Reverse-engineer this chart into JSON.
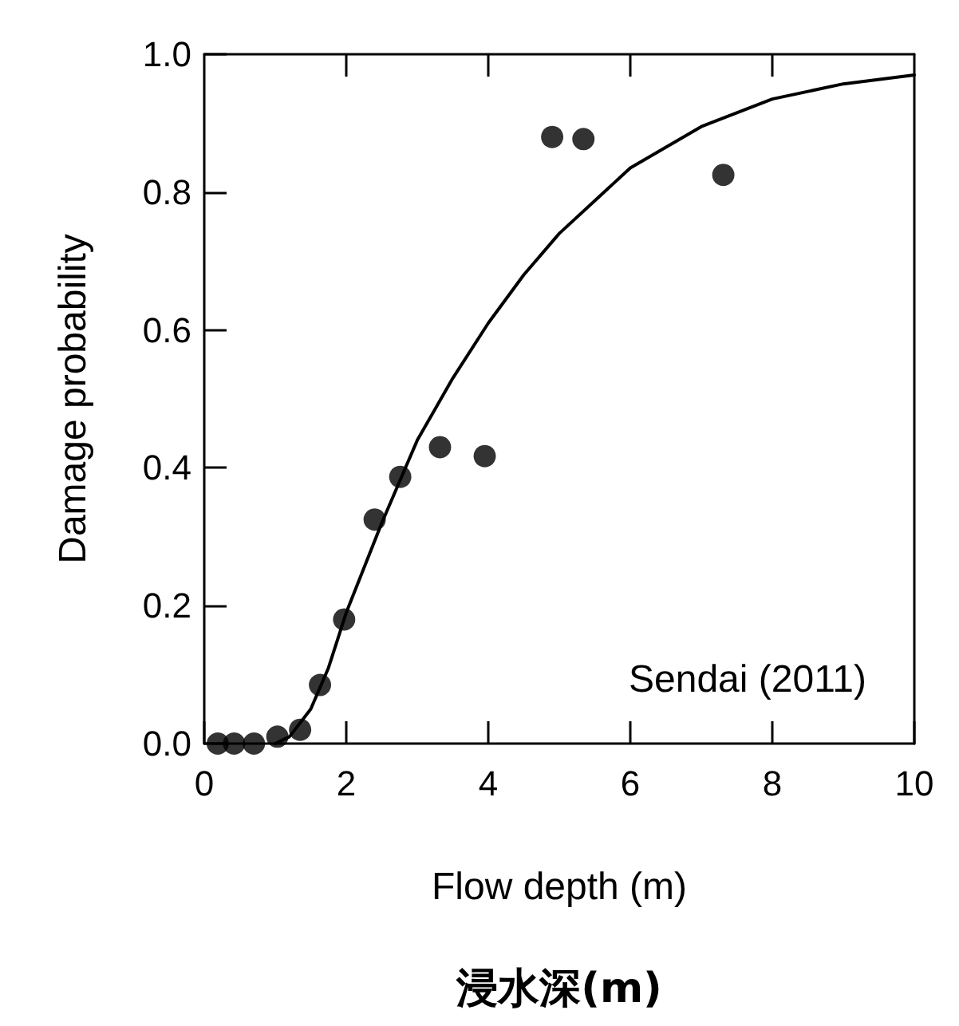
{
  "chart_data": {
    "type": "scatter",
    "xlabel": "Flow depth (m)",
    "ylabel": "Damage probability",
    "annotations": [
      "Sendai (2011)",
      "浸水深(m)"
    ],
    "xlim": [
      0,
      10
    ],
    "xticks": [
      0,
      2,
      4,
      6,
      8,
      10
    ],
    "ylim": [
      0,
      1
    ],
    "yticks": [
      {
        "value": 0,
        "label": "0.0"
      },
      {
        "value": 0.2,
        "label": "0.2"
      },
      {
        "value": 0.4,
        "label": "0.4"
      },
      {
        "value": 0.6,
        "label": "0.6"
      },
      {
        "value": 0.8,
        "label": "0.8"
      },
      {
        "value": 1,
        "label": "1.0"
      }
    ],
    "grid": false,
    "marker": "circle",
    "series": [
      {
        "color": "#000000",
        "x": [
          0.19,
          0.42,
          0.7,
          1.03,
          1.35,
          1.63,
          1.97,
          2.4,
          2.76,
          3.32,
          3.95,
          4.9,
          5.34,
          7.31
        ],
        "values": [
          0.0,
          0.0,
          0.0,
          0.01,
          0.02,
          0.085,
          0.18,
          0.325,
          0.387,
          0.43,
          0.417,
          0.88,
          0.877,
          0.825
        ]
      },
      {
        "type": "line",
        "color": "#000000",
        "marker": "none",
        "line_style": "solid",
        "x": [
          1.0,
          1.2,
          1.5,
          1.75,
          2.0,
          2.5,
          3.0,
          3.5,
          4.0,
          4.5,
          5.0,
          6.0,
          7.0,
          8.0,
          9.0,
          10.0
        ],
        "values": [
          0.0,
          0.01,
          0.05,
          0.11,
          0.19,
          0.32,
          0.44,
          0.53,
          0.61,
          0.68,
          0.74,
          0.835,
          0.895,
          0.935,
          0.957,
          0.97
        ]
      }
    ]
  }
}
